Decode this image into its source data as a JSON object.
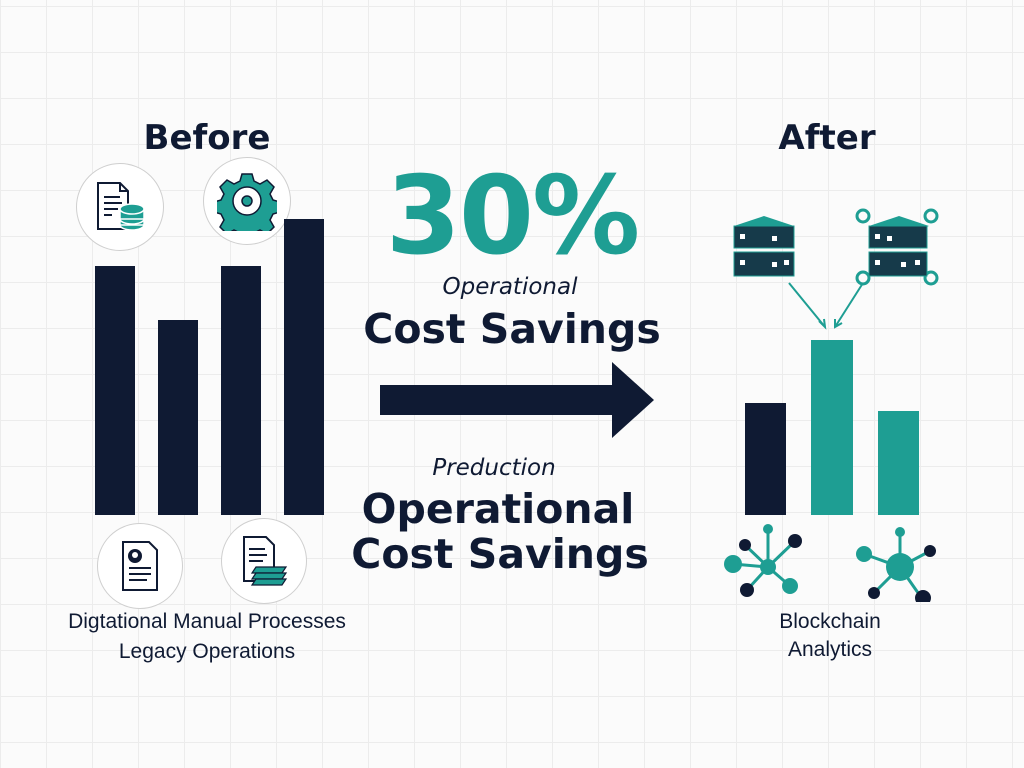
{
  "before": {
    "title": "Before",
    "caption_line1": "Digtational Manual Processes",
    "caption_line2": "Legacy Operations",
    "icons": [
      "document-database-icon",
      "gear-icon",
      "document-user-icon",
      "document-stack-icon"
    ]
  },
  "center": {
    "percent": "30%",
    "subtitle_italic": "Operational",
    "headline": "Cost Savings",
    "subtitle2_italic": "Preduction",
    "headline2_line1": "Operational",
    "headline2_line2": "Cost Savings"
  },
  "after": {
    "title": "After",
    "caption_line1": "Blockchain",
    "caption_line2": "Analytics",
    "icons": [
      "blockchain-cube-icon",
      "blockchain-network-cube-icon",
      "network-node-icon",
      "network-node-icon"
    ]
  },
  "colors": {
    "navy": "#0f1a33",
    "teal": "#1e9e93"
  },
  "chart_data": [
    {
      "type": "bar",
      "title": "Before",
      "values": [
        0.84,
        0.66,
        0.84,
        1.0
      ],
      "colors": [
        "#0f1a33",
        "#0f1a33",
        "#0f1a33",
        "#0f1a33"
      ]
    },
    {
      "type": "bar",
      "title": "After",
      "values": [
        0.38,
        0.59,
        0.35
      ],
      "colors": [
        "#0f1a33",
        "#1e9e93",
        "#1e9e93"
      ]
    }
  ]
}
